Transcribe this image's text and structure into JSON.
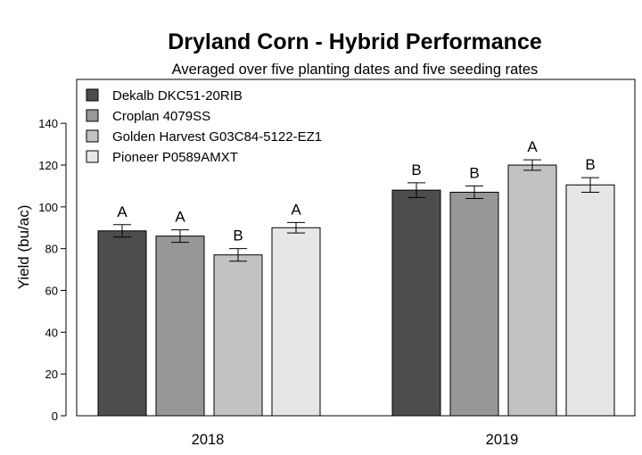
{
  "chart_data": {
    "type": "bar",
    "title": "Dryland Corn - Hybrid Performance",
    "subtitle": "Averaged over five planting dates and five seeding rates",
    "xlabel": "",
    "ylabel": "Yield (bu/ac)",
    "ylim": [
      0,
      150
    ],
    "yticks": [
      0,
      20,
      40,
      60,
      80,
      100,
      120,
      140
    ],
    "categories": [
      "2018",
      "2019"
    ],
    "legend_position": "top-left",
    "grid": false,
    "series": [
      {
        "name": "Dekalb DKC51-20RIB",
        "color": "#4d4d4d",
        "values": [
          88.5,
          108
        ],
        "errors": [
          3,
          3.5
        ],
        "letters": [
          "A",
          "B"
        ]
      },
      {
        "name": "Croplan 4079SS",
        "color": "#979797",
        "values": [
          86,
          107
        ],
        "errors": [
          3,
          3
        ],
        "letters": [
          "A",
          "B"
        ]
      },
      {
        "name": "Golden Harvest G03C84-5122-EZ1",
        "color": "#c2c2c2",
        "values": [
          77,
          120
        ],
        "errors": [
          3,
          2.5
        ],
        "letters": [
          "B",
          "A"
        ]
      },
      {
        "name": "Pioneer P0589AMXT",
        "color": "#e6e6e6",
        "values": [
          90,
          110.5
        ],
        "errors": [
          2.5,
          3.5
        ],
        "letters": [
          "A",
          "B"
        ]
      }
    ]
  }
}
